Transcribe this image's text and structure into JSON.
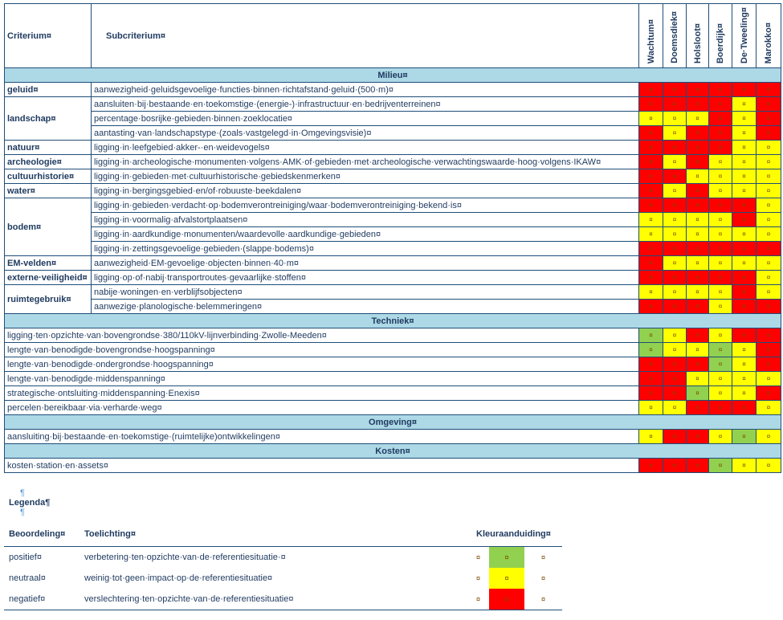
{
  "header": {
    "criterium": "Criterium¤",
    "subcriterium": "Subcriterium¤",
    "locations": [
      "Wachtum¤",
      "Doemsdiek¤",
      "Holsloot¤",
      "Boerdijk¤",
      "De·Tweeling¤",
      "Marokko¤"
    ]
  },
  "sections": [
    {
      "title": "Milieu¤",
      "rows": [
        {
          "crit": "geluid¤",
          "span": 1,
          "sub": "aanwezigheid·geluidsgevoelige·functies·binnen·richtafstand·geluid·(500·m)¤",
          "colors": [
            "r",
            "r",
            "r",
            "r",
            "r",
            "r"
          ]
        },
        {
          "crit": "landschap¤",
          "span": 3,
          "sub": "aansluiten·bij·bestaande·en·toekomstige·(energie-)·infrastructuur·en·bedrijventerreinen¤",
          "colors": [
            "r",
            "r",
            "r",
            "r",
            "y",
            "r"
          ]
        },
        {
          "crit": "",
          "span": 0,
          "sub": "percentage·bosrijke·gebieden·binnen·zoeklocatie¤",
          "colors": [
            "y",
            "y",
            "y",
            "r",
            "y",
            "r"
          ]
        },
        {
          "crit": "",
          "span": 0,
          "sub": "aantasting·van·landschapstype·(zoals·vastgelegd·in·Omgevingsvisie)¤",
          "colors": [
            "r",
            "y",
            "r",
            "r",
            "y",
            "r"
          ]
        },
        {
          "crit": "natuur¤",
          "span": 1,
          "sub": "ligging·in·leefgebied·akker-·en·weidevogels¤",
          "colors": [
            "r",
            "r",
            "r",
            "r",
            "y",
            "y"
          ]
        },
        {
          "crit": "archeologie¤",
          "span": 1,
          "sub": "ligging·in·archeologische·monumenten·volgens·AMK·of·gebieden·met·archeologische·verwachtingswaarde·hoog·volgens·IKAW¤",
          "colors": [
            "r",
            "y",
            "r",
            "y",
            "y",
            "y"
          ]
        },
        {
          "crit": "cultuurhistorie¤",
          "span": 1,
          "sub": "ligging·in·gebieden·met·cultuurhistorische·gebiedskenmerken¤",
          "colors": [
            "r",
            "r",
            "y",
            "y",
            "y",
            "y"
          ]
        },
        {
          "crit": "water¤",
          "span": 1,
          "sub": "ligging·in·bergingsgebied·en/of·robuuste·beekdalen¤",
          "colors": [
            "r",
            "y",
            "r",
            "y",
            "y",
            "y"
          ]
        },
        {
          "crit": "bodem¤",
          "span": 4,
          "sub": "ligging·in·gebieden·verdacht·op·bodemverontreiniging/waar·bodemverontreiniging·bekend·is¤",
          "colors": [
            "r",
            "r",
            "r",
            "r",
            "r",
            "y"
          ]
        },
        {
          "crit": "",
          "span": 0,
          "sub": "ligging·in·voormalig·afvalstortplaatsen¤",
          "colors": [
            "y",
            "y",
            "y",
            "y",
            "r",
            "y"
          ]
        },
        {
          "crit": "",
          "span": 0,
          "sub": "ligging·in·aardkundige·monumenten/waardevolle·aardkundige·gebieden¤",
          "colors": [
            "y",
            "y",
            "y",
            "y",
            "y",
            "y"
          ]
        },
        {
          "crit": "",
          "span": 0,
          "sub": "ligging·in·zettingsgevoelige·gebieden·(slappe·bodems)¤",
          "colors": [
            "r",
            "r",
            "r",
            "r",
            "r",
            "r"
          ]
        },
        {
          "crit": "EM-velden¤",
          "span": 1,
          "sub": "aanwezigheid·EM-gevoelige·objecten·binnen·40·m¤",
          "colors": [
            "r",
            "y",
            "y",
            "y",
            "y",
            "y"
          ]
        },
        {
          "crit": "externe·veiligheid¤",
          "span": 1,
          "sub": "ligging·op·of·nabij·transportroutes·gevaarlijke·stoffen¤",
          "colors": [
            "r",
            "r",
            "r",
            "r",
            "r",
            "y"
          ]
        },
        {
          "crit": "ruimtegebruik¤",
          "span": 2,
          "sub": "nabije·woningen·en·verblijfsobjecten¤",
          "colors": [
            "y",
            "y",
            "y",
            "y",
            "r",
            "y"
          ]
        },
        {
          "crit": "",
          "span": 0,
          "sub": "aanwezige·planologische·belemmeringen¤",
          "colors": [
            "r",
            "r",
            "r",
            "y",
            "r",
            "r"
          ]
        }
      ]
    },
    {
      "title": "Techniek¤",
      "rows": [
        {
          "crit": "",
          "span": -1,
          "sub": "ligging·ten·opzichte·van·bovengrondse·380/110kV-lijnverbinding·Zwolle-Meeden¤",
          "colors": [
            "g",
            "y",
            "r",
            "y",
            "r",
            "r"
          ]
        },
        {
          "crit": "",
          "span": -1,
          "sub": "lengte·van·benodigde·bovengrondse·hoogspanning¤",
          "colors": [
            "g",
            "y",
            "y",
            "g",
            "y",
            "r"
          ]
        },
        {
          "crit": "",
          "span": -1,
          "sub": "lengte·van·benodigde·ondergrondse·hoogspanning¤",
          "colors": [
            "r",
            "r",
            "r",
            "g",
            "y",
            "r"
          ]
        },
        {
          "crit": "",
          "span": -1,
          "sub": "lengte·van·benodigde·middenspanning¤",
          "colors": [
            "r",
            "r",
            "y",
            "y",
            "y",
            "y"
          ]
        },
        {
          "crit": "",
          "span": -1,
          "sub": "strategische·ontsluiting·middenspanning·Enexis¤",
          "colors": [
            "r",
            "r",
            "g",
            "y",
            "y",
            "r"
          ]
        },
        {
          "crit": "",
          "span": -1,
          "sub": "percelen·bereikbaar·via·verharde·weg¤",
          "colors": [
            "y",
            "y",
            "r",
            "r",
            "r",
            "y"
          ]
        }
      ]
    },
    {
      "title": "Omgeving¤",
      "rows": [
        {
          "crit": "",
          "span": -1,
          "sub": "aansluiting·bij·bestaande·en·toekomstige·(ruimtelijke)ontwikkelingen¤",
          "colors": [
            "y",
            "r",
            "r",
            "y",
            "g",
            "y"
          ]
        }
      ]
    },
    {
      "title": "Kosten¤",
      "rows": [
        {
          "crit": "",
          "span": -1,
          "sub": "kosten·station·en·assets¤",
          "colors": [
            "r",
            "r",
            "r",
            "g",
            "y",
            "y"
          ]
        }
      ]
    }
  ],
  "cell_mark": "¤",
  "legend": {
    "pilcrow": "¶",
    "title": "Legenda¶",
    "headers": {
      "beoordeling": "Beoordeling¤",
      "toelichting": "Toelichting¤",
      "kleur": "Kleuraanduiding¤"
    },
    "rows": [
      {
        "label": "positief¤",
        "text": "verbetering·ten·opzichte·van·de·referentiesituatie·¤",
        "color": "g"
      },
      {
        "label": "neutraal¤",
        "text": "weinig·tot·geen·impact·op·de·referentiesituatie¤",
        "color": "y"
      },
      {
        "label": "negatief¤",
        "text": "verslechtering·ten·opzichte·van·de·referentiesituatie¤",
        "color": "r"
      }
    ]
  },
  "colors": {
    "red": "#ff0000",
    "yellow": "#ffff00",
    "green": "#92d050",
    "section_bg": "#add8e6",
    "border": "#1f4e79"
  }
}
